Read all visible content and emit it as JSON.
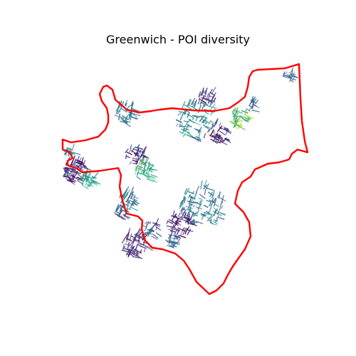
{
  "map": {
    "title": "Greenwich - POI diversity",
    "boundary_color": "#ff0000",
    "palette": [
      "#440154",
      "#472d7b",
      "#3b528b",
      "#2c728e",
      "#21918c",
      "#28ae80",
      "#5ec962",
      "#addc30"
    ]
  }
}
